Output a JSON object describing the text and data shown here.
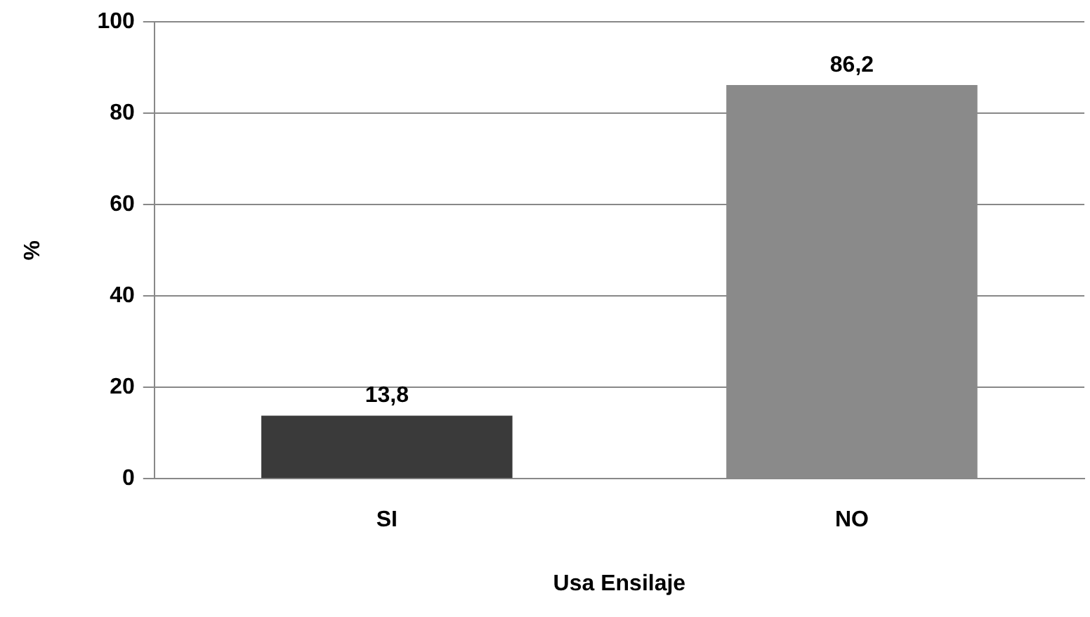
{
  "chart_data": {
    "type": "bar",
    "xlabel": "Usa Ensilaje",
    "ylabel": "%",
    "categories": [
      "SI",
      "NO"
    ],
    "values": [
      13.8,
      86.2
    ],
    "colors": [
      "#3a3a3a",
      "#8a8a8a"
    ],
    "value_labels": [
      "13,8",
      "86,2"
    ],
    "ylim": [
      0,
      100
    ],
    "yticks": [
      0,
      20,
      40,
      60,
      80,
      100
    ],
    "grid": "y",
    "legend": false
  }
}
